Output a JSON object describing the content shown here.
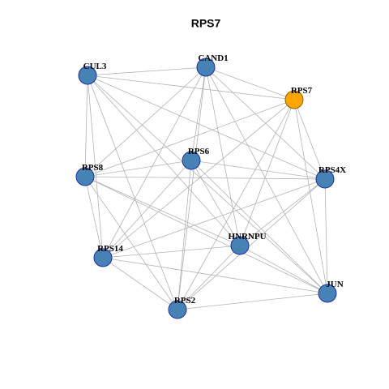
{
  "title": "RPS7",
  "nodes": [
    {
      "label": "CUL3"
    },
    {
      "label": "CAND1"
    },
    {
      "label": "RPS7"
    },
    {
      "label": "RPS6"
    },
    {
      "label": "RPS8"
    },
    {
      "label": "RPS4X"
    },
    {
      "label": "HNRNPU"
    },
    {
      "label": "RPS14"
    },
    {
      "label": "JUN"
    },
    {
      "label": "RPS2"
    }
  ]
}
